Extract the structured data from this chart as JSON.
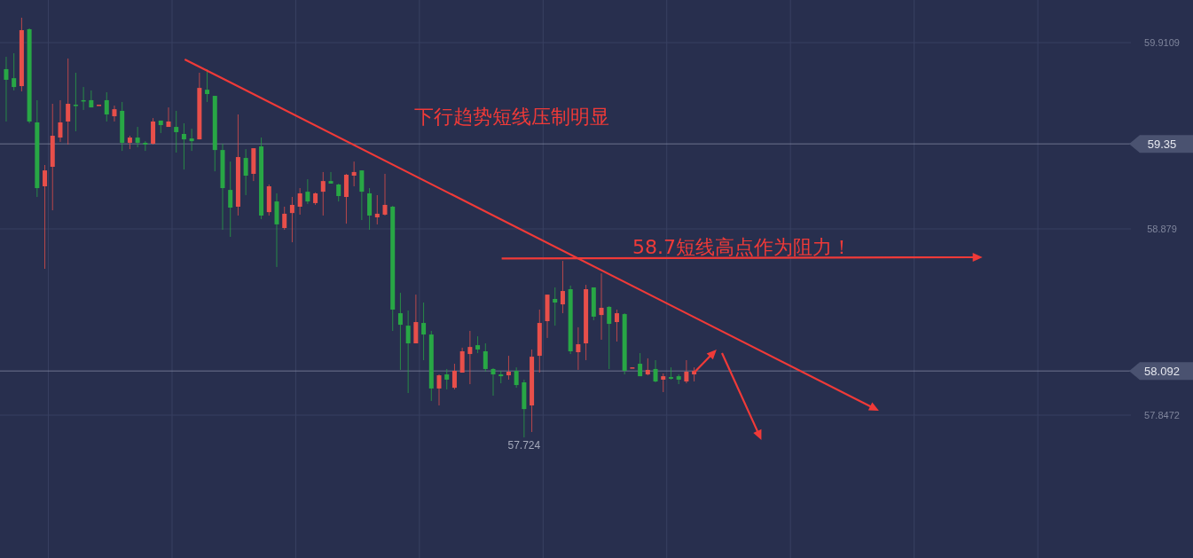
{
  "chart_data": {
    "type": "candlestick",
    "categories": [
      null,
      null,
      null,
      null,
      null,
      null,
      null,
      null,
      null,
      null,
      null,
      null,
      null,
      null,
      null,
      null,
      null,
      null,
      null,
      null,
      null,
      null,
      null,
      null,
      null,
      null,
      null,
      null,
      null,
      null,
      null,
      null,
      null,
      null,
      null,
      null,
      null,
      null,
      null,
      null,
      null,
      null,
      null,
      null,
      null,
      null,
      null,
      null,
      null,
      null,
      null,
      null,
      null,
      null,
      null,
      null,
      null,
      null,
      null,
      null,
      null,
      null,
      null,
      null,
      null,
      null,
      null,
      null,
      null,
      null,
      null,
      null,
      null,
      null,
      null,
      null,
      null,
      null,
      null,
      null,
      null,
      null,
      null,
      null,
      null,
      null,
      null,
      null,
      null,
      null,
      null,
      null,
      null,
      null,
      null,
      null,
      null,
      null,
      null,
      null,
      null,
      null,
      null,
      null,
      null,
      null,
      null,
      null,
      null,
      null,
      null,
      null,
      null,
      null,
      null,
      null,
      null,
      null,
      null,
      null,
      null,
      null,
      null,
      null,
      null,
      null,
      null,
      null,
      null,
      null,
      null,
      null,
      null,
      null,
      null,
      null,
      null,
      null,
      null,
      null,
      null,
      null,
      null,
      null,
      null,
      null
    ],
    "ohlc": [
      [
        59.764,
        59.832,
        59.474,
        59.705
      ],
      [
        59.714,
        59.852,
        59.646,
        59.665
      ],
      [
        59.67,
        60.049,
        59.641,
        59.98
      ],
      [
        59.985,
        59.99,
        59.464,
        59.474
      ],
      [
        59.469,
        59.592,
        59.056,
        59.105
      ],
      [
        59.115,
        59.233,
        58.658,
        59.203
      ],
      [
        59.223,
        59.572,
        58.982,
        59.395
      ],
      [
        59.385,
        59.592,
        59.361,
        59.469
      ],
      [
        59.474,
        59.823,
        59.346,
        59.572
      ],
      [
        59.567,
        59.744,
        59.42,
        59.562
      ],
      [
        59.592,
        59.665,
        59.538,
        59.587
      ],
      [
        59.592,
        59.646,
        59.552,
        59.552
      ],
      [
        59.562,
        59.567,
        59.562,
        59.567
      ],
      [
        59.592,
        59.636,
        59.474,
        59.513
      ],
      [
        59.503,
        59.562,
        59.474,
        59.542
      ],
      [
        59.533,
        59.582,
        59.311,
        59.356
      ],
      [
        59.356,
        59.395,
        59.321,
        59.385
      ],
      [
        59.385,
        59.444,
        59.331,
        59.356
      ],
      [
        59.356,
        59.365,
        59.311,
        59.346
      ],
      [
        59.351,
        59.493,
        59.346,
        59.474
      ],
      [
        59.479,
        59.479,
        59.41,
        59.454
      ],
      [
        59.444,
        59.552,
        59.444,
        59.474
      ],
      [
        59.444,
        59.533,
        59.302,
        59.415
      ],
      [
        59.405,
        59.464,
        59.208,
        59.375
      ],
      [
        59.38,
        59.434,
        59.311,
        59.365
      ],
      [
        59.375,
        59.744,
        59.375,
        59.66
      ],
      [
        59.65,
        59.764,
        59.582,
        59.626
      ],
      [
        59.616,
        59.616,
        59.198,
        59.316
      ],
      [
        59.316,
        59.351,
        58.874,
        59.105
      ],
      [
        59.095,
        59.252,
        58.835,
        58.997
      ],
      [
        59.002,
        59.513,
        58.953,
        59.277
      ],
      [
        59.272,
        59.321,
        59.066,
        59.174
      ],
      [
        59.184,
        59.326,
        59.144,
        59.326
      ],
      [
        59.336,
        59.385,
        58.933,
        58.953
      ],
      [
        58.972,
        59.125,
        58.953,
        59.115
      ],
      [
        59.031,
        59.076,
        58.668,
        58.904
      ],
      [
        58.884,
        59.002,
        58.874,
        58.963
      ],
      [
        58.967,
        59.056,
        58.805,
        59.012
      ],
      [
        59.002,
        59.105,
        58.958,
        59.076
      ],
      [
        59.085,
        59.154,
        59.017,
        59.031
      ],
      [
        59.022,
        59.081,
        59.012,
        59.076
      ],
      [
        59.085,
        59.194,
        58.953,
        59.144
      ],
      [
        59.144,
        59.194,
        59.13,
        59.13
      ],
      [
        59.125,
        59.13,
        59.031,
        59.061
      ],
      [
        59.056,
        59.184,
        58.908,
        59.179
      ],
      [
        59.174,
        59.252,
        59.115,
        59.194
      ],
      [
        59.203,
        59.203,
        58.928,
        59.085
      ],
      [
        59.076,
        59.105,
        58.874,
        58.953
      ],
      [
        58.943,
        59.066,
        58.904,
        58.963
      ],
      [
        58.958,
        59.184,
        58.953,
        59.012
      ],
      [
        59.002,
        59.007,
        58.314,
        58.432
      ],
      [
        58.412,
        58.525,
        58.098,
        58.348
      ],
      [
        58.343,
        58.427,
        57.97,
        58.245
      ],
      [
        58.245,
        58.515,
        58.245,
        58.363
      ],
      [
        58.358,
        58.471,
        58.152,
        58.294
      ],
      [
        58.294,
        58.314,
        57.926,
        57.995
      ],
      [
        57.995,
        58.073,
        57.901,
        58.068
      ],
      [
        58.073,
        58.103,
        57.99,
        58.044
      ],
      [
        57.999,
        58.132,
        57.99,
        58.093
      ],
      [
        58.083,
        58.221,
        58.083,
        58.201
      ],
      [
        58.186,
        58.314,
        58.019,
        58.225
      ],
      [
        58.235,
        58.284,
        58.191,
        58.211
      ],
      [
        58.201,
        58.245,
        58.088,
        58.103
      ],
      [
        58.103,
        58.108,
        57.955,
        58.073
      ],
      [
        58.073,
        58.093,
        58.024,
        58.063
      ],
      [
        58.068,
        58.176,
        58.044,
        58.088
      ],
      [
        58.093,
        58.112,
        57.999,
        58.014
      ],
      [
        58.029,
        58.044,
        57.724,
        57.881
      ],
      [
        57.901,
        58.211,
        57.754,
        58.171
      ],
      [
        58.176,
        58.432,
        58.083,
        58.358
      ],
      [
        58.368,
        58.515,
        58.275,
        58.515
      ],
      [
        58.491,
        58.555,
        58.343,
        58.471
      ],
      [
        58.461,
        58.702,
        58.412,
        58.535
      ],
      [
        58.545,
        58.565,
        58.186,
        58.201
      ],
      [
        58.196,
        58.334,
        58.098,
        58.24
      ],
      [
        58.245,
        58.569,
        58.152,
        58.545
      ],
      [
        58.555,
        58.555,
        58.373,
        58.393
      ],
      [
        58.402,
        58.633,
        58.265,
        58.442
      ],
      [
        58.447,
        58.452,
        58.103,
        58.353
      ],
      [
        58.363,
        58.432,
        58.255,
        58.412
      ],
      [
        58.407,
        58.412,
        58.073,
        58.093
      ],
      [
        58.108,
        58.112,
        58.108,
        58.112
      ],
      [
        58.132,
        58.191,
        58.063,
        58.063
      ],
      [
        58.073,
        58.162,
        58.068,
        58.098
      ],
      [
        58.103,
        58.152,
        58.029,
        58.034
      ],
      [
        58.044,
        58.078,
        57.975,
        58.063
      ],
      [
        58.058,
        58.112,
        58.044,
        58.049
      ],
      [
        58.063,
        58.073,
        58.019,
        58.044
      ],
      [
        58.034,
        58.152,
        58.024,
        58.088
      ],
      [
        58.073,
        58.112,
        58.034,
        58.092
      ],
      null,
      null,
      null,
      null,
      null,
      null,
      null,
      null,
      null,
      null,
      null,
      null,
      null,
      null,
      null,
      null,
      null,
      null,
      null,
      null,
      null,
      null,
      null,
      null,
      null,
      null,
      null,
      null,
      null,
      null,
      null,
      null,
      null,
      null,
      null,
      null,
      null,
      null,
      null,
      null,
      null,
      null,
      null,
      null,
      null,
      null,
      null,
      null,
      null,
      null,
      null,
      null,
      null,
      null,
      null,
      null
    ],
    "ylim": [
      57.056,
      60.147
    ],
    "yticks": [
      59.9109,
      58.879,
      57.8472
    ],
    "grid": true,
    "tick_labels": "y",
    "ref_lines": [
      {
        "axis": "y",
        "value": 59.35,
        "label": "59.35"
      },
      {
        "axis": "y",
        "value": 58.092,
        "label": "58.092"
      }
    ],
    "annotations": [
      "下行趋势短线压制明显",
      "58.7短线高点作为阻力！",
      "57.724"
    ]
  }
}
